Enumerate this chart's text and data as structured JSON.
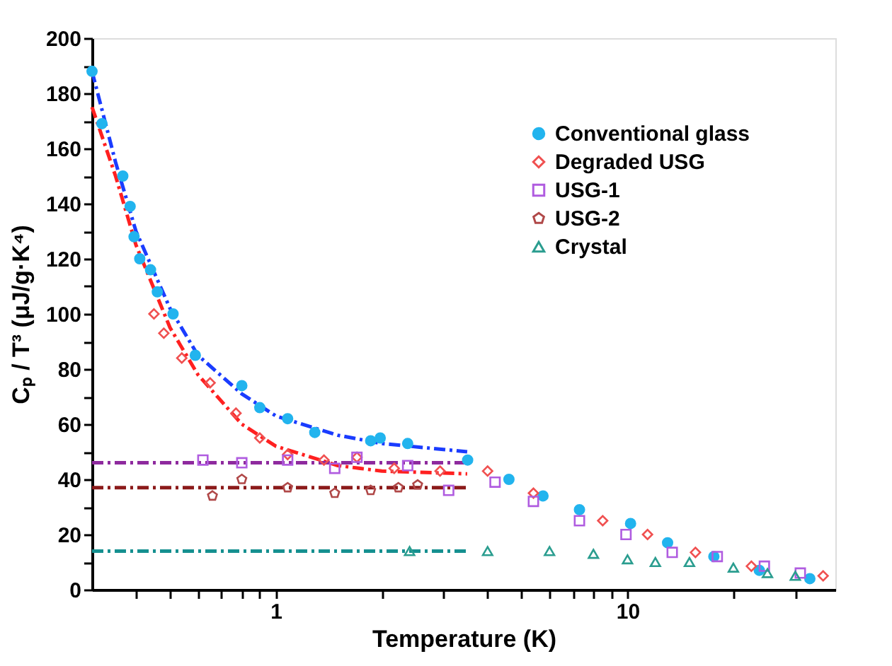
{
  "chart_data": {
    "type": "scatter",
    "xlabel": "Temperature (K)",
    "ylabel": "Cₚ / T³ (μJ/g·K⁴)",
    "log": "x",
    "grid": false,
    "legend": "top right",
    "xlim": [
      0.3,
      39
    ],
    "ylim": [
      0,
      200
    ],
    "xticks": [
      {
        "value": 0.4,
        "label": null
      },
      {
        "value": 0.5,
        "label": null
      },
      {
        "value": 0.6,
        "label": null
      },
      {
        "value": 0.7,
        "label": null
      },
      {
        "value": 0.8,
        "label": null
      },
      {
        "value": 0.9,
        "label": null
      },
      1,
      {
        "value": 2,
        "label": null
      },
      {
        "value": 3,
        "label": null
      },
      {
        "value": 4,
        "label": null
      },
      {
        "value": 5,
        "label": null
      },
      {
        "value": 6,
        "label": null
      },
      {
        "value": 7,
        "label": null
      },
      {
        "value": 8,
        "label": null
      },
      {
        "value": 9,
        "label": null
      },
      10,
      {
        "value": 20,
        "label": null
      },
      {
        "value": 30,
        "label": null
      }
    ],
    "yticks": [
      0,
      {
        "value": 10,
        "label": null
      },
      20,
      {
        "value": 30,
        "label": null
      },
      40,
      {
        "value": 50,
        "label": null
      },
      60,
      {
        "value": 70,
        "label": null
      },
      80,
      {
        "value": 90,
        "label": null
      },
      100,
      {
        "value": 110,
        "label": null
      },
      120,
      {
        "value": 130,
        "label": null
      },
      140,
      {
        "value": 150,
        "label": null
      },
      160,
      {
        "value": 170,
        "label": null
      },
      180,
      {
        "value": 190,
        "label": null
      },
      200
    ],
    "series": [
      {
        "type": "line",
        "color": "#1a3cff",
        "line_style": "dashed",
        "x": [
          0.3,
          0.35,
          0.4,
          0.5,
          0.6,
          0.8,
          1,
          1.5,
          2,
          3.5
        ],
        "values": [
          188,
          155,
          130,
          102,
          85,
          71,
          63,
          56,
          53,
          50
        ]
      },
      {
        "type": "line",
        "color": "#ff2020",
        "line_style": "dashed",
        "x": [
          0.3,
          0.35,
          0.4,
          0.5,
          0.6,
          0.8,
          1,
          1.5,
          2,
          3.5
        ],
        "values": [
          175,
          150,
          125,
          95,
          78,
          60,
          52,
          45,
          43,
          42
        ]
      },
      {
        "type": "line",
        "color": "#8e2a9e",
        "line_style": "dashed",
        "x": [
          0.3,
          3.5
        ],
        "values": [
          46,
          46
        ]
      },
      {
        "type": "line",
        "color": "#8b1a1a",
        "line_style": "dashed",
        "x": [
          0.3,
          3.5
        ],
        "values": [
          37,
          37
        ]
      },
      {
        "type": "line",
        "color": "#159090",
        "line_style": "dashed",
        "x": [
          0.3,
          3.5
        ],
        "values": [
          14,
          14
        ]
      },
      {
        "name": "Conventional glass",
        "color": "#22b4ee",
        "marker": "circle",
        "x": [
          0.3,
          0.32,
          0.367,
          0.385,
          0.395,
          0.41,
          0.44,
          0.46,
          0.51,
          0.59,
          0.8,
          0.9,
          1.08,
          1.29,
          1.86,
          1.98,
          2.37,
          3.51,
          4.6,
          5.75,
          7.3,
          10.2,
          13,
          17.6,
          23.7,
          33
        ],
        "values": [
          188,
          169,
          150,
          139,
          128,
          120,
          116,
          108,
          100,
          85,
          74,
          66,
          62,
          57,
          54,
          55,
          53,
          47,
          40,
          34,
          29,
          24,
          17,
          12,
          7,
          4
        ]
      },
      {
        "name": "Degraded USG",
        "color": "#f05050",
        "marker": "diamond",
        "x": [
          0.45,
          0.48,
          0.54,
          0.65,
          0.77,
          0.9,
          1.08,
          1.37,
          1.7,
          2.17,
          2.93,
          4,
          5.4,
          8.5,
          11.4,
          15.6,
          22.5,
          36
        ],
        "values": [
          100,
          93,
          84,
          75,
          64,
          55,
          49,
          47,
          48,
          44,
          43,
          43,
          35,
          25,
          20,
          13.5,
          8.5,
          5
        ]
      },
      {
        "name": "USG-1",
        "color": "#b05ce0",
        "marker": "square",
        "x": [
          0.62,
          0.8,
          1.08,
          1.47,
          1.7,
          2.37,
          3.1,
          4.2,
          5.4,
          7.3,
          9.9,
          13.4,
          18,
          24.5,
          31
        ],
        "values": [
          47,
          46,
          47,
          44,
          48,
          45,
          36,
          39,
          32,
          25,
          20,
          13.5,
          12,
          8.5,
          6
        ]
      },
      {
        "name": "USG-2",
        "color": "#b04848",
        "x": [
          0.66,
          0.8,
          1.08,
          1.47,
          1.86,
          2.23,
          2.53
        ],
        "values": [
          34,
          40,
          37,
          35,
          36,
          37,
          38
        ]
      },
      {
        "name": "Crystal",
        "color": "#2a9d8f",
        "marker": "triangle",
        "x": [
          2.4,
          4,
          6,
          8,
          10,
          12,
          15,
          20,
          25,
          30
        ],
        "values": [
          14,
          14,
          14,
          13,
          11,
          10,
          10,
          8,
          6,
          5
        ]
      }
    ]
  }
}
